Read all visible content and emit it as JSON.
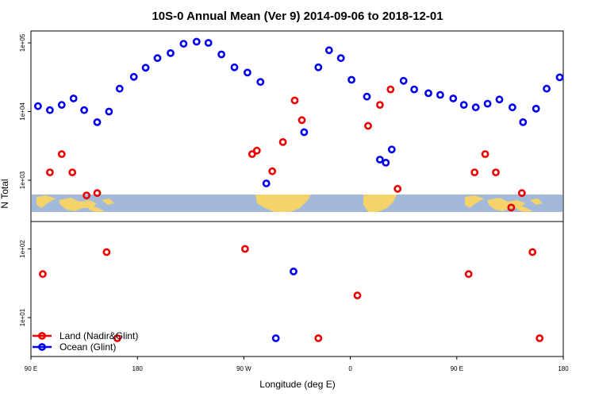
{
  "chart_data": {
    "type": "scatter",
    "title": "10S-0 Annual Mean (Ver 9)   2014-09-06 to 2018-12-01",
    "xlabel": "Longitude (deg E)",
    "ylabel": "N Total",
    "x_range": [
      90,
      540
    ],
    "x_ticks": [
      {
        "value": 90,
        "label": "90 E"
      },
      {
        "value": 180,
        "label": "180"
      },
      {
        "value": 270,
        "label": "90 W"
      },
      {
        "value": 360,
        "label": "0"
      },
      {
        "value": 450,
        "label": "90 E"
      },
      {
        "value": 540,
        "label": "180"
      }
    ],
    "y_scale": "log",
    "y_ticks": [
      {
        "value": 10,
        "label": "1e+01"
      },
      {
        "value": 100,
        "label": "1e+02"
      },
      {
        "value": 1000,
        "label": "1e+03"
      },
      {
        "value": 10000,
        "label": "1e+04"
      },
      {
        "value": 100000,
        "label": "1e+05"
      }
    ],
    "grid": false,
    "legend_position": "bottom-left",
    "series": [
      {
        "name": "Land (Nadir&Glint)",
        "color": "#ee0000",
        "points": [
          [
            100,
            43
          ],
          [
            106,
            1300
          ],
          [
            116,
            2400
          ],
          [
            125,
            1300
          ],
          [
            137,
            600
          ],
          [
            146,
            650
          ],
          [
            154,
            90
          ],
          [
            163,
            5
          ],
          [
            271,
            100
          ],
          [
            277,
            2400
          ],
          [
            281,
            2700
          ],
          [
            294,
            1350
          ],
          [
            303,
            3600
          ],
          [
            313,
            14500
          ],
          [
            319,
            7500
          ],
          [
            333,
            5
          ],
          [
            366,
            21
          ],
          [
            375,
            6200
          ],
          [
            385,
            12500
          ],
          [
            394,
            21000
          ],
          [
            400,
            750
          ],
          [
            460,
            43
          ],
          [
            465,
            1300
          ],
          [
            474,
            2400
          ],
          [
            483,
            1300
          ],
          [
            496,
            400
          ],
          [
            505,
            650
          ],
          [
            514,
            90
          ],
          [
            520,
            5
          ]
        ]
      },
      {
        "name": "Ocean (Glint)",
        "color": "#0000ee",
        "points": [
          [
            96,
            12000
          ],
          [
            106,
            10500
          ],
          [
            116,
            12500
          ],
          [
            126,
            15500
          ],
          [
            135,
            10500
          ],
          [
            146,
            7000
          ],
          [
            156,
            10000
          ],
          [
            165,
            21500
          ],
          [
            177,
            32000
          ],
          [
            187,
            43500
          ],
          [
            197,
            60000
          ],
          [
            208,
            71000
          ],
          [
            219,
            97000
          ],
          [
            230,
            104000
          ],
          [
            240,
            100000
          ],
          [
            251,
            68000
          ],
          [
            262,
            44000
          ],
          [
            273,
            37000
          ],
          [
            284,
            27000
          ],
          [
            289,
            900
          ],
          [
            297,
            5
          ],
          [
            312,
            47
          ],
          [
            321,
            5000
          ],
          [
            333,
            44000
          ],
          [
            342,
            78000
          ],
          [
            352,
            60000
          ],
          [
            361,
            29000
          ],
          [
            374,
            16500
          ],
          [
            385,
            2000
          ],
          [
            390,
            1800
          ],
          [
            395,
            2800
          ],
          [
            405,
            28000
          ],
          [
            414,
            21000
          ],
          [
            426,
            18500
          ],
          [
            436,
            17500
          ],
          [
            447,
            15500
          ],
          [
            456,
            12500
          ],
          [
            466,
            11500
          ],
          [
            476,
            13000
          ],
          [
            486,
            15000
          ],
          [
            497,
            11500
          ],
          [
            506,
            7000
          ],
          [
            517,
            11000
          ],
          [
            526,
            21500
          ],
          [
            537,
            31500
          ]
        ]
      }
    ]
  }
}
